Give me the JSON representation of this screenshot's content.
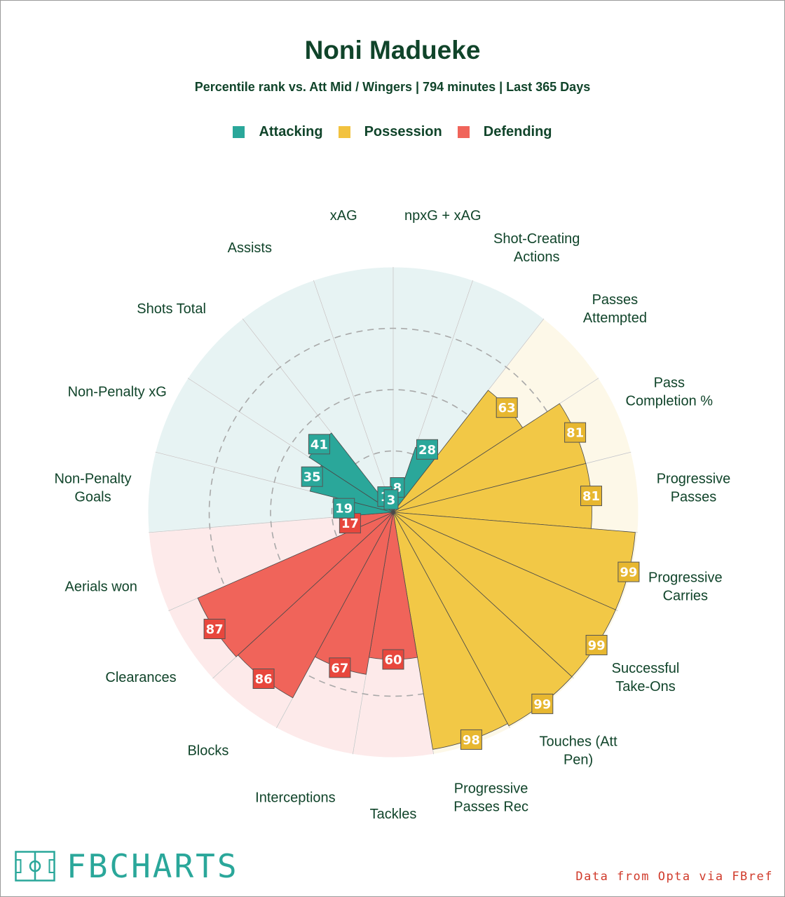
{
  "title": "Noni Madueke",
  "subtitle": "Percentile rank vs. Att Mid / Wingers | 794 minutes | Last 365 Days",
  "legend": [
    {
      "label": "Attacking",
      "color": "#2aa79a"
    },
    {
      "label": "Possession",
      "color": "#f2c23f"
    },
    {
      "label": "Defending",
      "color": "#f0645a"
    }
  ],
  "chart_data": {
    "type": "polar-bar",
    "range": [
      0,
      100
    ],
    "gridlines": [
      25,
      50,
      75
    ],
    "categories": [
      {
        "label": "npxG + xAG",
        "group": "Attacking",
        "value": 8
      },
      {
        "label": "Shot-Creating\nActions",
        "group": "Attacking",
        "value": 28
      },
      {
        "label": "Passes\nAttempted",
        "group": "Possession",
        "value": 63
      },
      {
        "label": "Pass\nCompletion %",
        "group": "Possession",
        "value": 81
      },
      {
        "label": "Progressive\nPasses",
        "group": "Possession",
        "value": 81
      },
      {
        "label": "Progressive\nCarries",
        "group": "Possession",
        "value": 99
      },
      {
        "label": "Successful\nTake-Ons",
        "group": "Possession",
        "value": 99
      },
      {
        "label": "Touches (Att\nPen)",
        "group": "Possession",
        "value": 99
      },
      {
        "label": "Progressive\nPasses Rec",
        "group": "Possession",
        "value": 98
      },
      {
        "label": "Tackles",
        "group": "Defending",
        "value": 60
      },
      {
        "label": "Interceptions",
        "group": "Defending",
        "value": 67
      },
      {
        "label": "Blocks",
        "group": "Defending",
        "value": 86
      },
      {
        "label": "Clearances",
        "group": "Defending",
        "value": 87
      },
      {
        "label": "Aerials won",
        "group": "Defending",
        "value": 17
      },
      {
        "label": "Non-Penalty\nGoals",
        "group": "Attacking",
        "value": 19
      },
      {
        "label": "Non-Penalty xG",
        "group": "Attacking",
        "value": 35
      },
      {
        "label": "Shots Total",
        "group": "Attacking",
        "value": 41
      },
      {
        "label": "Assists",
        "group": "Attacking",
        "value": 1
      },
      {
        "label": "xAG",
        "group": "Attacking",
        "value": 3
      }
    ],
    "colors": {
      "Attacking": {
        "bar": "#2aa79a",
        "bg": "#e7f3f3",
        "box": "#2aa79a"
      },
      "Possession": {
        "bar": "#f2c846",
        "bg": "#fdf8e8",
        "box": "#e7b730"
      },
      "Defending": {
        "bar": "#f0645a",
        "bg": "#fdeaea",
        "box": "#e8473d"
      }
    }
  },
  "footer": {
    "brand": "FBCHARTS",
    "credit": "Data from Opta via FBref"
  }
}
